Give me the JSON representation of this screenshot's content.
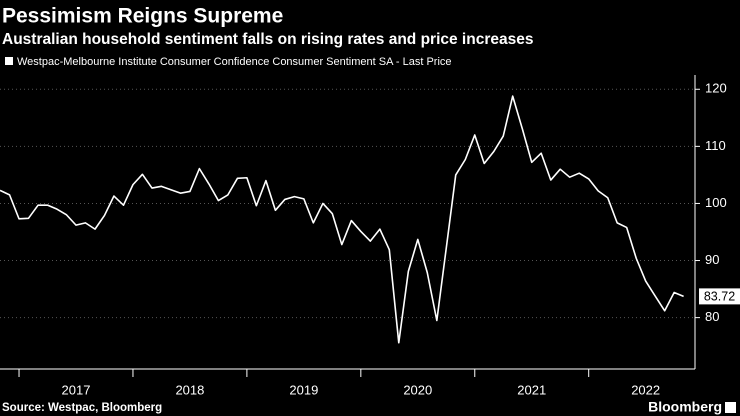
{
  "chart_data": {
    "type": "line",
    "title": "Pessimism Reigns Supreme",
    "subtitle": "Australian household sentiment falls on rising rates and price increases",
    "source": "Source: Westpac, Bloomberg",
    "brand": "Bloomberg",
    "x": [
      2016.833,
      2016.917,
      2017.0,
      2017.083,
      2017.167,
      2017.25,
      2017.333,
      2017.417,
      2017.5,
      2017.583,
      2017.667,
      2017.75,
      2017.833,
      2017.917,
      2018.0,
      2018.083,
      2018.167,
      2018.25,
      2018.333,
      2018.417,
      2018.5,
      2018.583,
      2018.667,
      2018.75,
      2018.833,
      2018.917,
      2019.0,
      2019.083,
      2019.167,
      2019.25,
      2019.333,
      2019.417,
      2019.5,
      2019.583,
      2019.667,
      2019.75,
      2019.833,
      2019.917,
      2020.0,
      2020.083,
      2020.167,
      2020.25,
      2020.333,
      2020.417,
      2020.5,
      2020.583,
      2020.667,
      2020.75,
      2020.833,
      2020.917,
      2021.0,
      2021.083,
      2021.167,
      2021.25,
      2021.333,
      2021.417,
      2021.5,
      2021.583,
      2021.667,
      2021.75,
      2021.833,
      2021.917,
      2022.0,
      2022.083,
      2022.167,
      2022.25,
      2022.333,
      2022.417,
      2022.5,
      2022.583,
      2022.667,
      2022.75,
      2022.833
    ],
    "series": [
      {
        "name": "Westpac-Melbourne Institute Consumer Confidence Consumer Sentiment SA - Last Price",
        "color": "#ffffff",
        "values": [
          102.3,
          101.5,
          97.3,
          97.4,
          99.7,
          99.7,
          99.0,
          98.0,
          96.2,
          96.6,
          95.5,
          97.9,
          101.3,
          99.7,
          103.3,
          105.1,
          102.7,
          103.0,
          102.4,
          101.8,
          102.1,
          106.1,
          103.4,
          100.5,
          101.5,
          104.4,
          104.5,
          99.6,
          104.0,
          98.8,
          100.7,
          101.2,
          100.8,
          96.6,
          100.0,
          98.2,
          92.8,
          97.0,
          95.1,
          93.4,
          95.5,
          91.9,
          75.6,
          88.1,
          93.7,
          87.9,
          79.5,
          92.2,
          105.0,
          107.7,
          112.0,
          107.0,
          109.1,
          111.8,
          118.8,
          113.1,
          107.2,
          108.8,
          104.1,
          106.0,
          104.6,
          105.3,
          104.3,
          102.2,
          101.0,
          96.6,
          95.8,
          90.4,
          86.4,
          83.8,
          81.2,
          84.4,
          83.72
        ]
      }
    ],
    "xlim": [
      2016.833,
      2022.933
    ],
    "xticks": [
      {
        "value": 2017.5,
        "label": "2017"
      },
      {
        "value": 2018.5,
        "label": "2018"
      },
      {
        "value": 2019.5,
        "label": "2019"
      },
      {
        "value": 2020.5,
        "label": "2020"
      },
      {
        "value": 2021.5,
        "label": "2021"
      },
      {
        "value": 2022.5,
        "label": "2022"
      }
    ],
    "ylim": [
      71,
      122.5
    ],
    "yticks": [
      80,
      90,
      100,
      110,
      120
    ],
    "grid": true
  }
}
